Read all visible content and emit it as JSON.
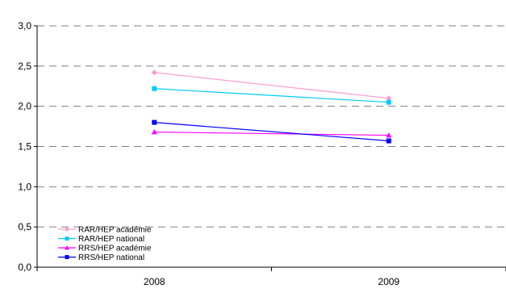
{
  "chart_data": {
    "type": "line",
    "categories": [
      "2008",
      "2009"
    ],
    "ylim": [
      0,
      3
    ],
    "y_ticks": [
      "0,0",
      "0,5",
      "1,0",
      "1,5",
      "2,0",
      "2,5",
      "3,0"
    ],
    "grid": "horizontal dashed",
    "legend_position": "bottom-left",
    "series": [
      {
        "name": "RAR/HEP académie",
        "values": [
          2.42,
          2.1
        ],
        "color": "#ff99cc",
        "marker": "diamond"
      },
      {
        "name": "RAR/HEP national",
        "values": [
          2.22,
          2.05
        ],
        "color": "#00ccff",
        "marker": "square"
      },
      {
        "name": "RRS/HEP académie",
        "values": [
          1.68,
          1.64
        ],
        "color": "#ff00ff",
        "marker": "triangle"
      },
      {
        "name": "RRS/HEP national",
        "values": [
          1.8,
          1.57
        ],
        "color": "#0000ff",
        "marker": "square"
      }
    ]
  }
}
